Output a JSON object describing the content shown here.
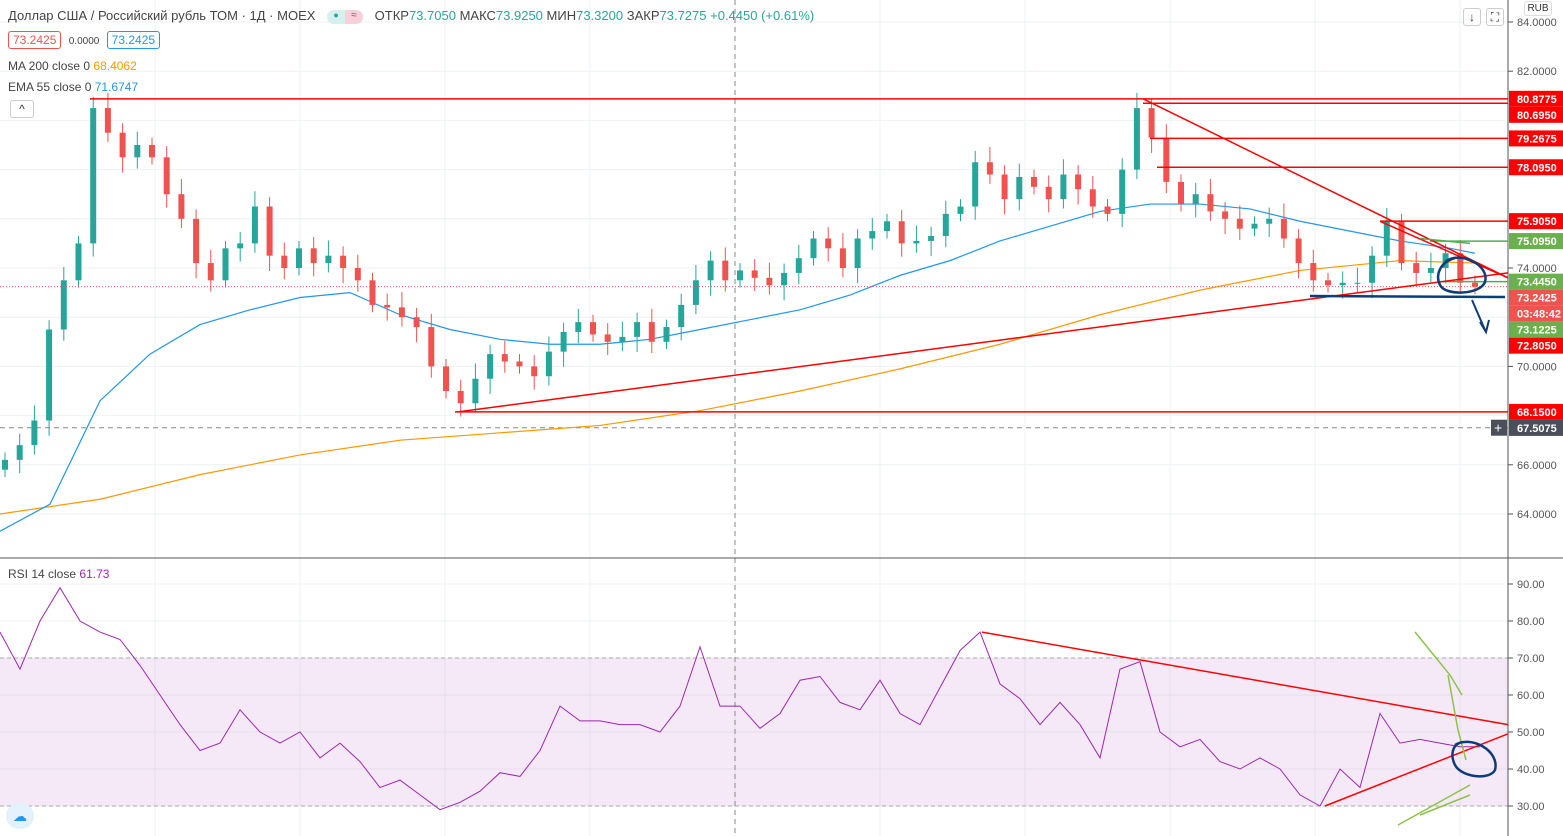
{
  "header": {
    "symbol": "Доллар США / Российский рубль ТОМ · 1Д · MOEX",
    "open_label": "ОТКР",
    "open": "73.7050",
    "high_label": "МАКС",
    "high": "73.9250",
    "low_label": "МИН",
    "low": "73.3200",
    "close_label": "ЗАКР",
    "close": "73.7275",
    "change": "+0.4450 (+0.61%)"
  },
  "quote": {
    "bid": "73.2425",
    "spread": "0.0000",
    "ask": "73.2425"
  },
  "indicators": {
    "ma_label": "MA 200 close 0",
    "ma_value": "68.4062",
    "ema_label": "EMA 55 close 0",
    "ema_value": "71.6747",
    "rsi_label": "RSI 14 close",
    "rsi_value": "61.73"
  },
  "currency": "RUB",
  "colors": {
    "up": "#26a69a",
    "down": "#ef5350",
    "ma": "#ff9800",
    "ema": "#2196f3",
    "rsi": "#9c27b0",
    "drawing": "#ff0000",
    "green_level": "#4caf50"
  },
  "chart_data": [
    {
      "type": "candlestick",
      "title": "USDRUB_TOM 1D",
      "ylim": [
        62.5,
        84.5
      ],
      "yticks": [
        "84.0000",
        "82.0000",
        "74.0000",
        "70.0000",
        "66.0000",
        "64.0000"
      ],
      "closes": [
        66.2,
        66.8,
        67.8,
        71.5,
        73.5,
        75,
        80.5,
        79.5,
        78.5,
        79,
        78.5,
        77,
        76,
        74.2,
        73.5,
        74.8,
        75,
        76.5,
        74.5,
        74,
        74.8,
        74.2,
        74.5,
        74,
        73.5,
        72.5,
        72.4,
        72,
        71.6,
        70,
        69,
        68.5,
        69.5,
        70.5,
        70.2,
        70,
        69.6,
        70.6,
        71.4,
        71.8,
        71.3,
        71,
        71.2,
        71.8,
        71,
        71.6,
        72.5,
        73.5,
        74.3,
        73.5,
        73.9,
        73.6,
        73.3,
        73.8,
        74.4,
        75.2,
        74.8,
        74,
        75.2,
        75.5,
        75.9,
        75,
        75.1,
        75.3,
        76.2,
        76.5,
        78.3,
        77.8,
        76.8,
        77.7,
        77.3,
        76.8,
        77.8,
        77.2,
        76.5,
        76.2,
        78,
        80.5,
        79.3,
        77.5,
        76.6,
        77,
        76.3,
        76,
        75.6,
        75.8,
        76,
        75.2,
        74.2,
        73.5,
        73.3,
        73.4,
        73.4,
        74.5,
        75.9,
        74.2,
        73.8,
        74,
        74.6,
        73.4,
        73.24
      ],
      "ema55": [
        63.3,
        64.4,
        68.6,
        70.5,
        71.7,
        72.3,
        72.8,
        73.0,
        72.1,
        71.5,
        71.1,
        70.9,
        70.9,
        71.1,
        71.5,
        71.9,
        72.3,
        72.9,
        73.7,
        74.3,
        75.1,
        75.7,
        76.3,
        76.6,
        76.6,
        76.4,
        75.9,
        75.5,
        75.1,
        74.8,
        74.6
      ],
      "ma200": [
        64,
        64.6,
        65.6,
        66.4,
        67,
        67.3,
        67.6,
        68.2,
        69,
        69.9,
        70.9,
        72.1,
        73.1,
        73.9,
        74.3,
        74.2
      ],
      "price_labels": [
        {
          "text": "80.8775",
          "price": 80.8775,
          "color": "#ff0000"
        },
        {
          "text": "80.6950",
          "price": 80.695,
          "color": "#ff0000"
        },
        {
          "text": "79.2675",
          "price": 79.2675,
          "color": "#ff0000"
        },
        {
          "text": "78.0950",
          "price": 78.095,
          "color": "#ff0000"
        },
        {
          "text": "75.9050",
          "price": 75.905,
          "color": "#ff0000"
        },
        {
          "text": "75.0950",
          "price": 75.095,
          "color": "#6ab04c"
        },
        {
          "text": "73.4450",
          "price": 73.445,
          "color": "#6ab04c"
        },
        {
          "text": "73.2425",
          "price": 72.9,
          "color": "#ef5350"
        },
        {
          "text": "03:48:42",
          "price": 72.35,
          "color": "#ef5350"
        },
        {
          "text": "73.1225",
          "price": 71.7,
          "color": "#6ab04c"
        },
        {
          "text": "72.8050",
          "price": 71.1,
          "color": "#ff0000"
        },
        {
          "text": "68.1500",
          "price": 68.15,
          "color": "#ff0000"
        },
        {
          "text": "67.5075",
          "price": 67.5075,
          "color": "#4a4f5a"
        }
      ]
    },
    {
      "type": "line",
      "title": "RSI 14 close",
      "ylim": [
        26,
        94
      ],
      "yticks": [
        "90.00",
        "80.00",
        "70.00",
        "60.00",
        "50.00",
        "40.00",
        "30.00"
      ],
      "band": [
        30,
        70
      ],
      "values": [
        77,
        67,
        80,
        89,
        80,
        77,
        75,
        68,
        60,
        52,
        45,
        47,
        56,
        50,
        47,
        50,
        43,
        47,
        42,
        35,
        37,
        33,
        29,
        31,
        34,
        39,
        38,
        45,
        57,
        53,
        53,
        52,
        52,
        50,
        57,
        73,
        57,
        57,
        51,
        55,
        64,
        65,
        58,
        56,
        64,
        55,
        52,
        62,
        72,
        77,
        63,
        59,
        52,
        58,
        52,
        43,
        67,
        69,
        50,
        46,
        48,
        42,
        40,
        43,
        40,
        33,
        30,
        40,
        35,
        55,
        47,
        48,
        47,
        46,
        46
      ]
    }
  ]
}
